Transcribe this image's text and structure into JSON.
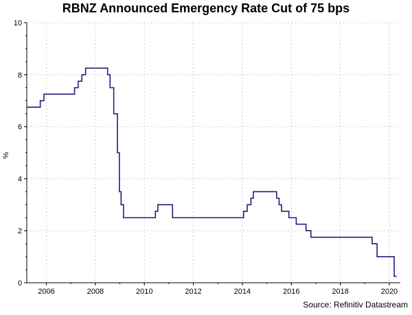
{
  "chart_data": {
    "type": "line",
    "title": "RBNZ Announced Emergency Rate Cut of 75 bps",
    "ylabel": "%",
    "xlabel": "",
    "source": "Source: Refinitiv Datastream",
    "xlim": [
      2005.2,
      2020.45
    ],
    "ylim": [
      0,
      10
    ],
    "x_ticks": [
      "2006",
      "2008",
      "2010",
      "2012",
      "2014",
      "2016",
      "2018",
      "2020"
    ],
    "y_ticks": [
      "0",
      "2",
      "4",
      "6",
      "8",
      "10"
    ],
    "grid": true,
    "colors": {
      "line": "#1f1f7a",
      "grid": "#cfcfcf",
      "axis": "#000000"
    },
    "series": [
      {
        "step": "post",
        "x": [
          2005.2,
          2005.75,
          2005.9,
          2007.15,
          2007.3,
          2007.45,
          2007.6,
          2008.5,
          2008.6,
          2008.75,
          2008.9,
          2008.98,
          2009.05,
          2009.15,
          2009.25,
          2010.45,
          2010.55,
          2011.15,
          2014.05,
          2014.2,
          2014.35,
          2014.45,
          2015.4,
          2015.5,
          2015.6,
          2015.75,
          2015.9,
          2016.2,
          2016.6,
          2016.8,
          2019.3,
          2019.5,
          2020.2,
          2020.3
        ],
        "values": [
          6.75,
          7.0,
          7.25,
          7.5,
          7.75,
          8.0,
          8.25,
          8.0,
          7.5,
          6.5,
          5.0,
          3.5,
          3.0,
          2.5,
          2.5,
          2.75,
          3.0,
          2.5,
          2.75,
          3.0,
          3.25,
          3.5,
          3.25,
          3.0,
          2.75,
          2.75,
          2.5,
          2.25,
          2.0,
          1.75,
          1.5,
          1.0,
          0.25,
          0.25
        ]
      }
    ]
  }
}
